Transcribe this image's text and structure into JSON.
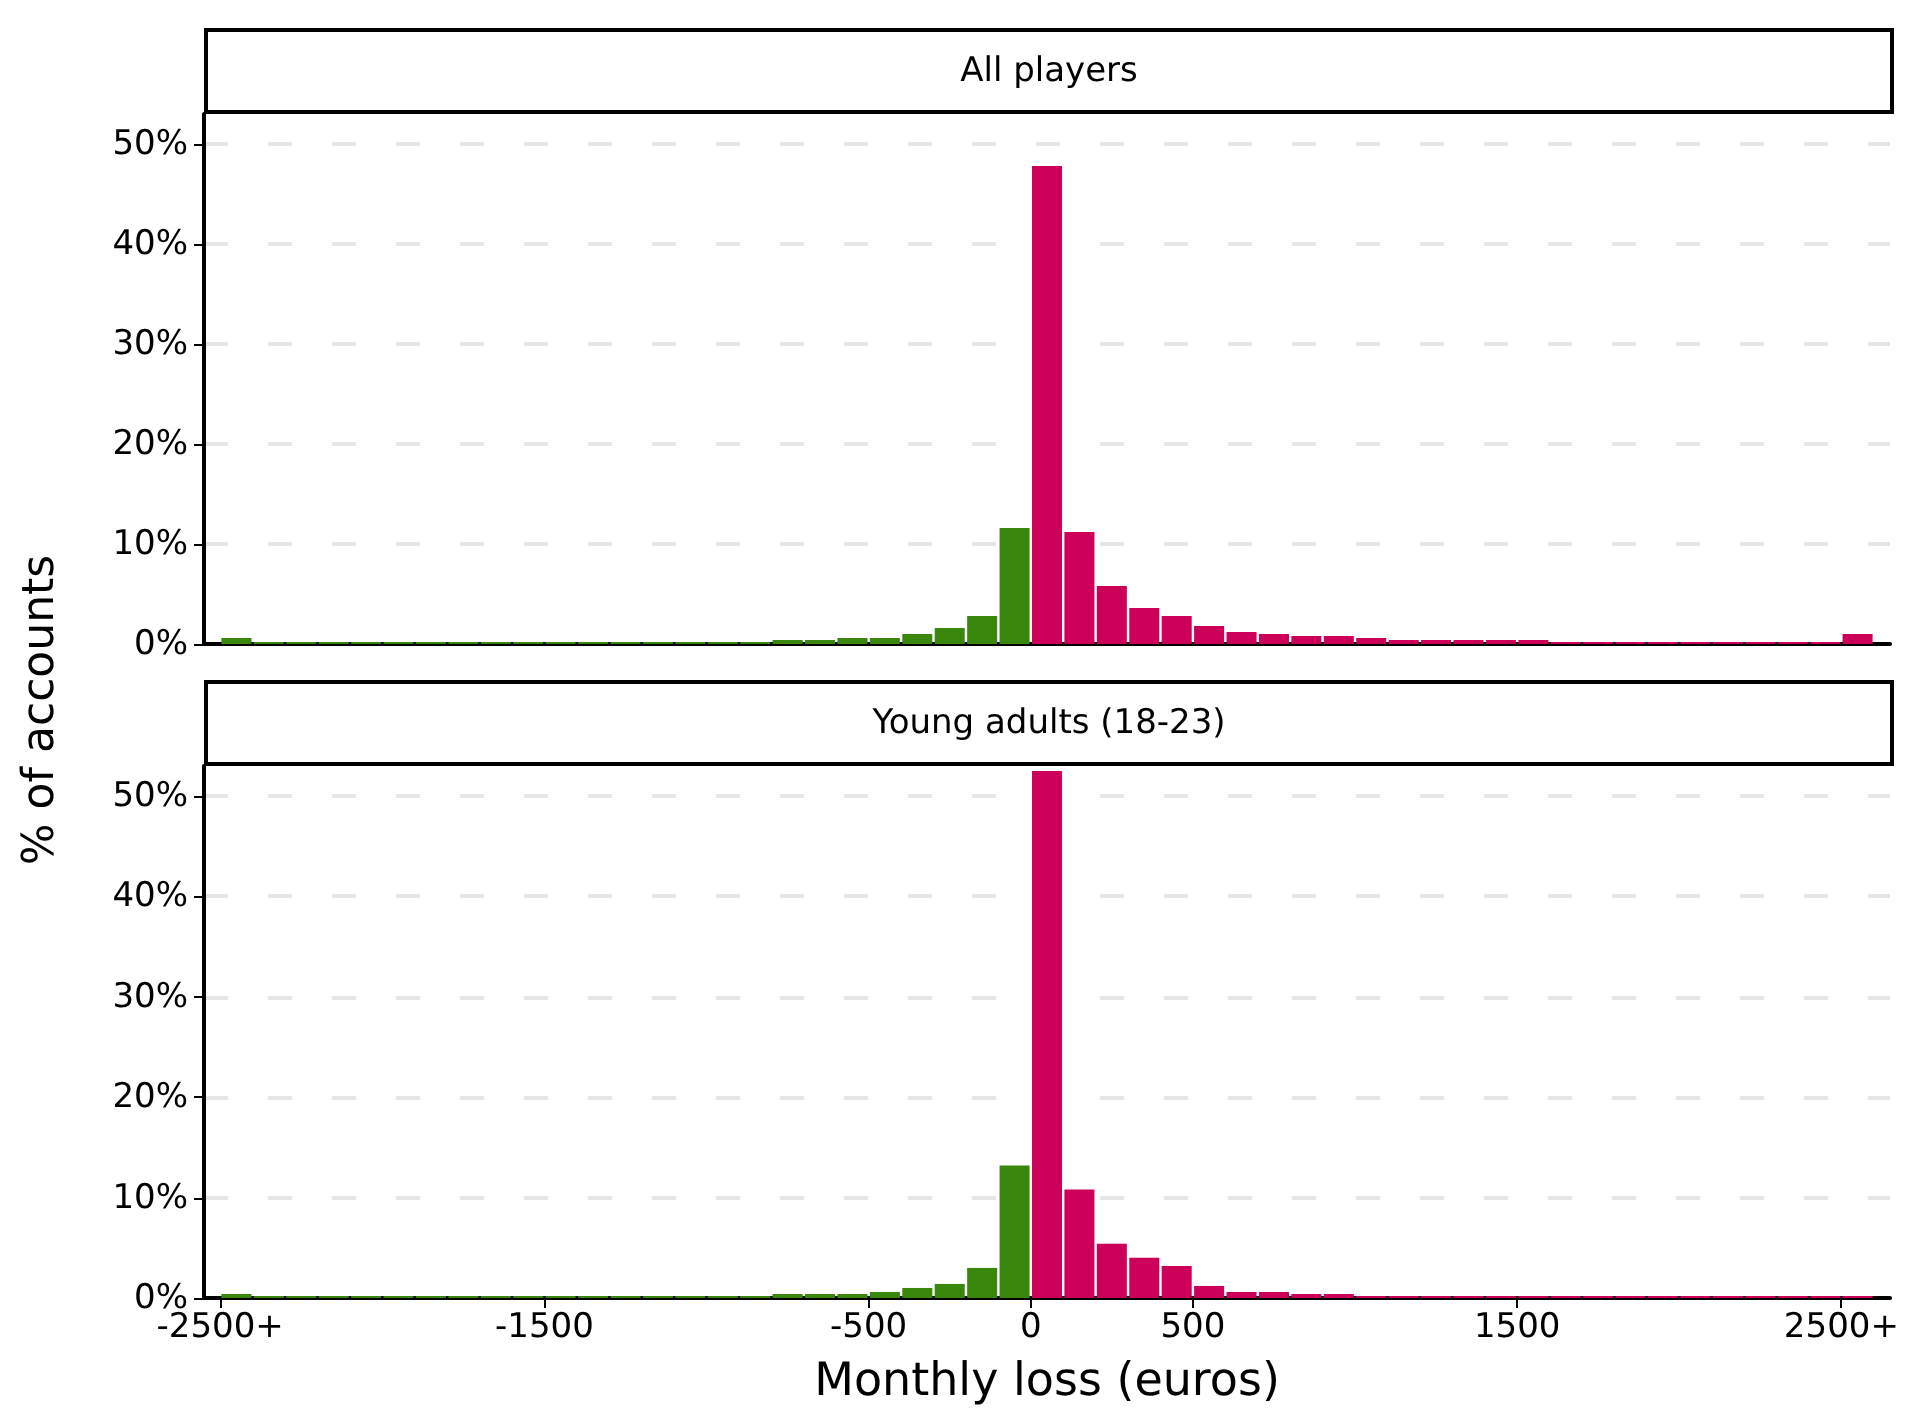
{
  "chart_data": [
    {
      "type": "histogram",
      "title": "All players",
      "ylabel": "% of accounts",
      "bins": [
        -2500,
        -2400,
        -2300,
        -2200,
        -2100,
        -2000,
        -1900,
        -1800,
        -1700,
        -1600,
        -1500,
        -1400,
        -1300,
        -1200,
        -1100,
        -1000,
        -900,
        -800,
        -700,
        -600,
        -500,
        -400,
        -300,
        -200,
        -100,
        0,
        100,
        200,
        300,
        400,
        500,
        600,
        700,
        800,
        900,
        1000,
        1100,
        1200,
        1300,
        1400,
        1500,
        1600,
        1700,
        1800,
        1900,
        2000,
        2100,
        2200,
        2300,
        2400,
        2500,
        2600
      ],
      "values": [
        0.6,
        0.2,
        0.2,
        0.2,
        0.2,
        0.2,
        0.2,
        0.2,
        0.2,
        0.2,
        0.2,
        0.2,
        0.2,
        0.2,
        0.2,
        0.2,
        0.2,
        0.4,
        0.4,
        0.6,
        0.6,
        1.0,
        1.6,
        2.8,
        11.6,
        47.8,
        11.2,
        5.8,
        3.6,
        2.8,
        1.8,
        1.2,
        1.0,
        0.8,
        0.8,
        0.6,
        0.4,
        0.4,
        0.4,
        0.4,
        0.4,
        0.2,
        0.2,
        0.2,
        0.2,
        0.2,
        0.2,
        0.2,
        0.2,
        0.2,
        1.0
      ],
      "colors": [
        "#3a870e",
        "#3a870e",
        "#3a870e",
        "#3a870e",
        "#3a870e",
        "#3a870e",
        "#3a870e",
        "#3a870e",
        "#3a870e",
        "#3a870e",
        "#3a870e",
        "#3a870e",
        "#3a870e",
        "#3a870e",
        "#3a870e",
        "#3a870e",
        "#3a870e",
        "#3a870e",
        "#3a870e",
        "#3a870e",
        "#3a870e",
        "#3a870e",
        "#3a870e",
        "#3a870e",
        "#3a870e",
        "#cc0058",
        "#cc0058",
        "#cc0058",
        "#cc0058",
        "#cc0058",
        "#cc0058",
        "#cc0058",
        "#cc0058",
        "#cc0058",
        "#cc0058",
        "#cc0058",
        "#cc0058",
        "#cc0058",
        "#cc0058",
        "#cc0058",
        "#cc0058",
        "#cc0058",
        "#cc0058",
        "#cc0058",
        "#cc0058",
        "#cc0058",
        "#cc0058",
        "#cc0058",
        "#cc0058",
        "#cc0058",
        "#cc0058"
      ],
      "xlim": [
        -2550,
        2650
      ],
      "ylim": [
        0,
        53
      ],
      "yticks": [
        {
          "value": 0,
          "label": "0%"
        },
        {
          "value": 10,
          "label": "10%"
        },
        {
          "value": 20,
          "label": "20%"
        },
        {
          "value": 30,
          "label": "30%"
        },
        {
          "value": 40,
          "label": "40%"
        },
        {
          "value": 50,
          "label": "50%"
        }
      ],
      "grid": "y",
      "tick_labels": "y"
    },
    {
      "type": "histogram",
      "title": "Young adults (18-23)",
      "xlabel": "Monthly loss (euros)",
      "bins": [
        -2500,
        -2400,
        -2300,
        -2200,
        -2100,
        -2000,
        -1900,
        -1800,
        -1700,
        -1600,
        -1500,
        -1400,
        -1300,
        -1200,
        -1100,
        -1000,
        -900,
        -800,
        -700,
        -600,
        -500,
        -400,
        -300,
        -200,
        -100,
        0,
        100,
        200,
        300,
        400,
        500,
        600,
        700,
        800,
        900,
        1000,
        1100,
        1200,
        1300,
        1400,
        1500,
        1600,
        1700,
        1800,
        1900,
        2000,
        2100,
        2200,
        2300,
        2400,
        2500,
        2600
      ],
      "values": [
        0.4,
        0.2,
        0.2,
        0.2,
        0.2,
        0.2,
        0.2,
        0.2,
        0.2,
        0.2,
        0.2,
        0.2,
        0.2,
        0.2,
        0.2,
        0.2,
        0.2,
        0.4,
        0.4,
        0.4,
        0.6,
        1.0,
        1.4,
        3.0,
        13.2,
        52.5,
        10.8,
        5.4,
        4.0,
        3.2,
        1.2,
        0.6,
        0.6,
        0.4,
        0.4,
        0.2,
        0.2,
        0.2,
        0.2,
        0.2,
        0.2,
        0.2,
        0.2,
        0.2,
        0.2,
        0.2,
        0.2,
        0.2,
        0.2,
        0.2,
        0.2
      ],
      "colors": [
        "#3a870e",
        "#3a870e",
        "#3a870e",
        "#3a870e",
        "#3a870e",
        "#3a870e",
        "#3a870e",
        "#3a870e",
        "#3a870e",
        "#3a870e",
        "#3a870e",
        "#3a870e",
        "#3a870e",
        "#3a870e",
        "#3a870e",
        "#3a870e",
        "#3a870e",
        "#3a870e",
        "#3a870e",
        "#3a870e",
        "#3a870e",
        "#3a870e",
        "#3a870e",
        "#3a870e",
        "#3a870e",
        "#cc0058",
        "#cc0058",
        "#cc0058",
        "#cc0058",
        "#cc0058",
        "#cc0058",
        "#cc0058",
        "#cc0058",
        "#cc0058",
        "#cc0058",
        "#cc0058",
        "#cc0058",
        "#cc0058",
        "#cc0058",
        "#cc0058",
        "#cc0058",
        "#cc0058",
        "#cc0058",
        "#cc0058",
        "#cc0058",
        "#cc0058",
        "#cc0058",
        "#cc0058",
        "#cc0058",
        "#cc0058",
        "#cc0058"
      ],
      "xlim": [
        -2550,
        2650
      ],
      "xticks": [
        {
          "value": -2500,
          "label": "-2500+"
        },
        -1500,
        -500,
        0,
        500,
        1500,
        {
          "value": 2500,
          "label": "2500+"
        }
      ],
      "ylim": [
        0,
        53
      ],
      "yticks": [
        {
          "value": 0,
          "label": "0%"
        },
        {
          "value": 10,
          "label": "10%"
        },
        {
          "value": 20,
          "label": "20%"
        },
        {
          "value": 30,
          "label": "30%"
        },
        {
          "value": 40,
          "label": "40%"
        },
        {
          "value": 50,
          "label": "50%"
        }
      ],
      "grid": "y"
    }
  ]
}
